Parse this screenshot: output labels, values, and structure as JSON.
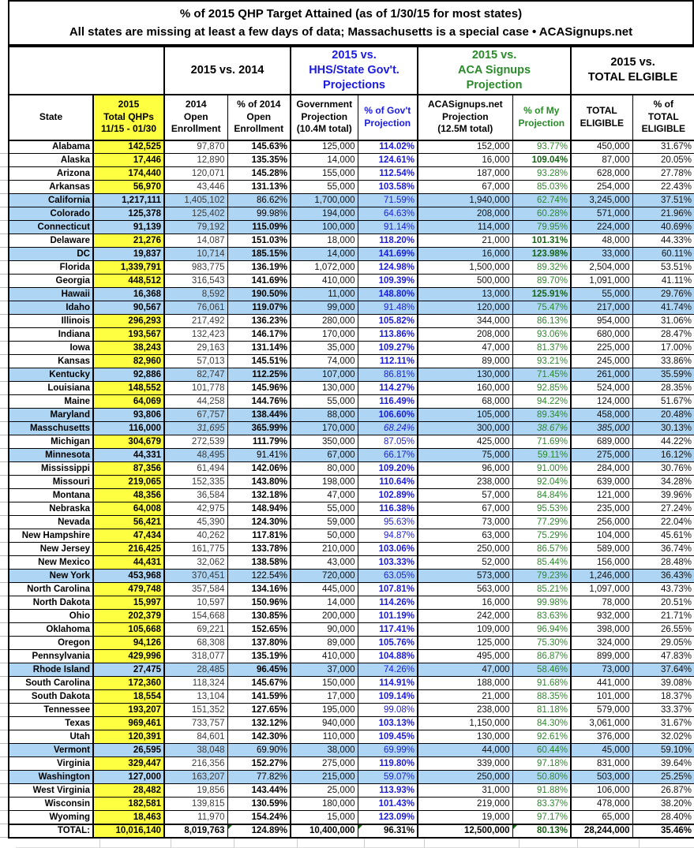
{
  "title": {
    "line1": "% of 2015 QHP Target Attained (as of 1/30/15 for most states)",
    "line2": "All states are missing at least a few days of data; Massachusetts is a special case • ACASignups.net"
  },
  "colors": {
    "highlight_yellow": "#ffff42",
    "row_blue": "#aed5f4",
    "gov_blue": "#1a1ae0",
    "signups_green": "#2a8a2a",
    "signups_green_bold": "#156615"
  },
  "header": {
    "groups": [
      {
        "label": ""
      },
      {
        "label": "2015 vs. 2014"
      },
      {
        "label": "2015 vs.\nHHS/State Gov't.\nProjections"
      },
      {
        "label": "2015 vs.\nACA Signups\nProjection"
      },
      {
        "label": "2015 vs.\nTOTAL ELGIBLE"
      }
    ],
    "columns": [
      {
        "label": "State"
      },
      {
        "label": "2015\nTotal QHPs\n11/15 - 01/30"
      },
      {
        "label": "2014\nOpen\nEnrollment"
      },
      {
        "label": "% of 2014\nOpen\nEnrollment"
      },
      {
        "label": "Government\nProjection\n(10.4M total)"
      },
      {
        "label": "% of Gov't\nProjection"
      },
      {
        "label": "ACASignups.net\nProjection\n(12.5M total)"
      },
      {
        "label": "% of My\nProjection"
      },
      {
        "label": "TOTAL\nELIGIBLE"
      },
      {
        "label": "% of\nTOTAL\nELIGIBLE"
      }
    ]
  },
  "table": {
    "rows": [
      {
        "state": "Alabama",
        "shaded": false,
        "qhp": "142,525",
        "e2014": "97,870",
        "pct2014": "145.63%",
        "gov": "125,000",
        "pctgov": "114.02%",
        "aca": "152,000",
        "pctmy": "93.77%",
        "elig": "450,000",
        "pctelig": "31.67%"
      },
      {
        "state": "Alaska",
        "shaded": false,
        "qhp": "17,446",
        "e2014": "12,890",
        "pct2014": "135.35%",
        "gov": "14,000",
        "pctgov": "124.61%",
        "aca": "16,000",
        "pctmy": "109.04%",
        "elig": "87,000",
        "pctelig": "20.05%"
      },
      {
        "state": "Arizona",
        "shaded": false,
        "qhp": "174,440",
        "e2014": "120,071",
        "pct2014": "145.28%",
        "gov": "155,000",
        "pctgov": "112.54%",
        "aca": "187,000",
        "pctmy": "93.28%",
        "elig": "628,000",
        "pctelig": "27.78%"
      },
      {
        "state": "Arkansas",
        "shaded": false,
        "qhp": "56,970",
        "e2014": "43,446",
        "pct2014": "131.13%",
        "gov": "55,000",
        "pctgov": "103.58%",
        "aca": "67,000",
        "pctmy": "85.03%",
        "elig": "254,000",
        "pctelig": "22.43%"
      },
      {
        "state": "California",
        "shaded": true,
        "qhp": "1,217,111",
        "e2014": "1,405,102",
        "pct2014": "86.62%",
        "gov": "1,700,000",
        "pctgov": "71.59%",
        "aca": "1,940,000",
        "pctmy": "62.74%",
        "elig": "3,245,000",
        "pctelig": "37.51%"
      },
      {
        "state": "Colorado",
        "shaded": true,
        "qhp": "125,378",
        "e2014": "125,402",
        "pct2014": "99.98%",
        "gov": "194,000",
        "pctgov": "64.63%",
        "aca": "208,000",
        "pctmy": "60.28%",
        "elig": "571,000",
        "pctelig": "21.96%"
      },
      {
        "state": "Connecticut",
        "shaded": true,
        "qhp": "91,139",
        "e2014": "79,192",
        "pct2014": "115.09%",
        "gov": "100,000",
        "pctgov": "91.14%",
        "aca": "114,000",
        "pctmy": "79.95%",
        "elig": "224,000",
        "pctelig": "40.69%"
      },
      {
        "state": "Delaware",
        "shaded": false,
        "qhp": "21,276",
        "e2014": "14,087",
        "pct2014": "151.03%",
        "gov": "18,000",
        "pctgov": "118.20%",
        "aca": "21,000",
        "pctmy": "101.31%",
        "elig": "48,000",
        "pctelig": "44.33%"
      },
      {
        "state": "DC",
        "shaded": true,
        "qhp": "19,837",
        "e2014": "10,714",
        "pct2014": "185.15%",
        "gov": "14,000",
        "pctgov": "141.69%",
        "aca": "16,000",
        "pctmy": "123.98%",
        "elig": "33,000",
        "pctelig": "60.11%"
      },
      {
        "state": "Florida",
        "shaded": false,
        "qhp": "1,339,791",
        "e2014": "983,775",
        "pct2014": "136.19%",
        "gov": "1,072,000",
        "pctgov": "124.98%",
        "aca": "1,500,000",
        "pctmy": "89.32%",
        "elig": "2,504,000",
        "pctelig": "53.51%"
      },
      {
        "state": "Georgia",
        "shaded": false,
        "qhp": "448,512",
        "e2014": "316,543",
        "pct2014": "141.69%",
        "gov": "410,000",
        "pctgov": "109.39%",
        "aca": "500,000",
        "pctmy": "89.70%",
        "elig": "1,091,000",
        "pctelig": "41.11%"
      },
      {
        "state": "Hawaii",
        "shaded": true,
        "qhp": "16,368",
        "e2014": "8,592",
        "pct2014": "190.50%",
        "gov": "11,000",
        "pctgov": "148.80%",
        "aca": "13,000",
        "pctmy": "125.91%",
        "elig": "55,000",
        "pctelig": "29.76%"
      },
      {
        "state": "Idaho",
        "shaded": true,
        "qhp": "90,567",
        "e2014": "76,061",
        "pct2014": "119.07%",
        "gov": "99,000",
        "pctgov": "91.48%",
        "aca": "120,000",
        "pctmy": "75.47%",
        "elig": "217,000",
        "pctelig": "41.74%"
      },
      {
        "state": "Illinois",
        "shaded": false,
        "qhp": "296,293",
        "e2014": "217,492",
        "pct2014": "136.23%",
        "gov": "280,000",
        "pctgov": "105.82%",
        "aca": "344,000",
        "pctmy": "86.13%",
        "elig": "954,000",
        "pctelig": "31.06%"
      },
      {
        "state": "Indiana",
        "shaded": false,
        "qhp": "193,567",
        "e2014": "132,423",
        "pct2014": "146.17%",
        "gov": "170,000",
        "pctgov": "113.86%",
        "aca": "208,000",
        "pctmy": "93.06%",
        "elig": "680,000",
        "pctelig": "28.47%"
      },
      {
        "state": "Iowa",
        "shaded": false,
        "qhp": "38,243",
        "e2014": "29,163",
        "pct2014": "131.14%",
        "gov": "35,000",
        "pctgov": "109.27%",
        "aca": "47,000",
        "pctmy": "81.37%",
        "elig": "225,000",
        "pctelig": "17.00%"
      },
      {
        "state": "Kansas",
        "shaded": false,
        "qhp": "82,960",
        "e2014": "57,013",
        "pct2014": "145.51%",
        "gov": "74,000",
        "pctgov": "112.11%",
        "aca": "89,000",
        "pctmy": "93.21%",
        "elig": "245,000",
        "pctelig": "33.86%"
      },
      {
        "state": "Kentucky",
        "shaded": true,
        "qhp": "92,886",
        "e2014": "82,747",
        "pct2014": "112.25%",
        "gov": "107,000",
        "pctgov": "86.81%",
        "aca": "130,000",
        "pctmy": "71.45%",
        "elig": "261,000",
        "pctelig": "35.59%"
      },
      {
        "state": "Louisiana",
        "shaded": false,
        "qhp": "148,552",
        "e2014": "101,778",
        "pct2014": "145.96%",
        "gov": "130,000",
        "pctgov": "114.27%",
        "aca": "160,000",
        "pctmy": "92.85%",
        "elig": "524,000",
        "pctelig": "28.35%"
      },
      {
        "state": "Maine",
        "shaded": false,
        "qhp": "64,069",
        "e2014": "44,258",
        "pct2014": "144.76%",
        "gov": "55,000",
        "pctgov": "116.49%",
        "aca": "68,000",
        "pctmy": "94.22%",
        "elig": "124,000",
        "pctelig": "51.67%"
      },
      {
        "state": "Maryland",
        "shaded": true,
        "qhp": "93,806",
        "e2014": "67,757",
        "pct2014": "138.44%",
        "gov": "88,000",
        "pctgov": "106.60%",
        "aca": "105,000",
        "pctmy": "89.34%",
        "elig": "458,000",
        "pctelig": "20.48%"
      },
      {
        "state": "Masschusetts",
        "shaded": true,
        "qhp": "116,000",
        "e2014": "31,695",
        "pct2014": "365.99%",
        "gov": "170,000",
        "pctgov": "68.24%",
        "aca": "300,000",
        "pctmy": "38.67%",
        "elig": "385,000",
        "pctelig": "30.13%",
        "italics": [
          "e2014",
          "pctgov",
          "pctmy",
          "elig"
        ]
      },
      {
        "state": "Michigan",
        "shaded": false,
        "qhp": "304,679",
        "e2014": "272,539",
        "pct2014": "111.79%",
        "gov": "350,000",
        "pctgov": "87.05%",
        "aca": "425,000",
        "pctmy": "71.69%",
        "elig": "689,000",
        "pctelig": "44.22%"
      },
      {
        "state": "Minnesota",
        "shaded": true,
        "qhp": "44,331",
        "e2014": "48,495",
        "pct2014": "91.41%",
        "gov": "67,000",
        "pctgov": "66.17%",
        "aca": "75,000",
        "pctmy": "59.11%",
        "elig": "275,000",
        "pctelig": "16.12%"
      },
      {
        "state": "Mississippi",
        "shaded": false,
        "qhp": "87,356",
        "e2014": "61,494",
        "pct2014": "142.06%",
        "gov": "80,000",
        "pctgov": "109.20%",
        "aca": "96,000",
        "pctmy": "91.00%",
        "elig": "284,000",
        "pctelig": "30.76%"
      },
      {
        "state": "Missouri",
        "shaded": false,
        "qhp": "219,065",
        "e2014": "152,335",
        "pct2014": "143.80%",
        "gov": "198,000",
        "pctgov": "110.64%",
        "aca": "238,000",
        "pctmy": "92.04%",
        "elig": "639,000",
        "pctelig": "34.28%"
      },
      {
        "state": "Montana",
        "shaded": false,
        "qhp": "48,356",
        "e2014": "36,584",
        "pct2014": "132.18%",
        "gov": "47,000",
        "pctgov": "102.89%",
        "aca": "57,000",
        "pctmy": "84.84%",
        "elig": "121,000",
        "pctelig": "39.96%"
      },
      {
        "state": "Nebraska",
        "shaded": false,
        "qhp": "64,008",
        "e2014": "42,975",
        "pct2014": "148.94%",
        "gov": "55,000",
        "pctgov": "116.38%",
        "aca": "67,000",
        "pctmy": "95.53%",
        "elig": "235,000",
        "pctelig": "27.24%"
      },
      {
        "state": "Nevada",
        "shaded": false,
        "qhp": "56,421",
        "e2014": "45,390",
        "pct2014": "124.30%",
        "gov": "59,000",
        "pctgov": "95.63%",
        "aca": "73,000",
        "pctmy": "77.29%",
        "elig": "256,000",
        "pctelig": "22.04%"
      },
      {
        "state": "New Hampshire",
        "shaded": false,
        "qhp": "47,434",
        "e2014": "40,262",
        "pct2014": "117.81%",
        "gov": "50,000",
        "pctgov": "94.87%",
        "aca": "63,000",
        "pctmy": "75.29%",
        "elig": "104,000",
        "pctelig": "45.61%"
      },
      {
        "state": "New Jersey",
        "shaded": false,
        "qhp": "216,425",
        "e2014": "161,775",
        "pct2014": "133.78%",
        "gov": "210,000",
        "pctgov": "103.06%",
        "aca": "250,000",
        "pctmy": "86.57%",
        "elig": "589,000",
        "pctelig": "36.74%"
      },
      {
        "state": "New Mexico",
        "shaded": false,
        "qhp": "44,431",
        "e2014": "32,062",
        "pct2014": "138.58%",
        "gov": "43,000",
        "pctgov": "103.33%",
        "aca": "52,000",
        "pctmy": "85.44%",
        "elig": "156,000",
        "pctelig": "28.48%"
      },
      {
        "state": "New York",
        "shaded": true,
        "qhp": "453,968",
        "e2014": "370,451",
        "pct2014": "122.54%",
        "gov": "720,000",
        "pctgov": "63.05%",
        "aca": "573,000",
        "pctmy": "79.23%",
        "elig": "1,246,000",
        "pctelig": "36.43%",
        "bold_overrides": {
          "pct2014": false
        }
      },
      {
        "state": "North Carolina",
        "shaded": false,
        "qhp": "479,748",
        "e2014": "357,584",
        "pct2014": "134.16%",
        "gov": "445,000",
        "pctgov": "107.81%",
        "aca": "563,000",
        "pctmy": "85.21%",
        "elig": "1,097,000",
        "pctelig": "43.73%"
      },
      {
        "state": "North Dakota",
        "shaded": false,
        "qhp": "15,997",
        "e2014": "10,597",
        "pct2014": "150.96%",
        "gov": "14,000",
        "pctgov": "114.26%",
        "aca": "16,000",
        "pctmy": "99.98%",
        "elig": "78,000",
        "pctelig": "20.51%"
      },
      {
        "state": "Ohio",
        "shaded": false,
        "qhp": "202,379",
        "e2014": "154,668",
        "pct2014": "130.85%",
        "gov": "200,000",
        "pctgov": "101.19%",
        "aca": "242,000",
        "pctmy": "83.63%",
        "elig": "932,000",
        "pctelig": "21.71%"
      },
      {
        "state": "Oklahoma",
        "shaded": false,
        "qhp": "105,668",
        "e2014": "69,221",
        "pct2014": "152.65%",
        "gov": "90,000",
        "pctgov": "117.41%",
        "aca": "109,000",
        "pctmy": "96.94%",
        "elig": "398,000",
        "pctelig": "26.55%"
      },
      {
        "state": "Oregon",
        "shaded": false,
        "qhp": "94,126",
        "e2014": "68,308",
        "pct2014": "137.80%",
        "gov": "89,000",
        "pctgov": "105.76%",
        "aca": "125,000",
        "pctmy": "75.30%",
        "elig": "324,000",
        "pctelig": "29.05%"
      },
      {
        "state": "Pennsylvania",
        "shaded": false,
        "qhp": "429,996",
        "e2014": "318,077",
        "pct2014": "135.19%",
        "gov": "410,000",
        "pctgov": "104.88%",
        "aca": "495,000",
        "pctmy": "86.87%",
        "elig": "899,000",
        "pctelig": "47.83%"
      },
      {
        "state": "Rhode Island",
        "shaded": true,
        "qhp": "27,475",
        "e2014": "28,485",
        "pct2014": "96.45%",
        "gov": "37,000",
        "pctgov": "74.26%",
        "aca": "47,000",
        "pctmy": "58.46%",
        "elig": "73,000",
        "pctelig": "37.64%",
        "bold_overrides": {
          "pct2014": true
        }
      },
      {
        "state": "South Carolina",
        "shaded": false,
        "qhp": "172,360",
        "e2014": "118,324",
        "pct2014": "145.67%",
        "gov": "150,000",
        "pctgov": "114.91%",
        "aca": "188,000",
        "pctmy": "91.68%",
        "elig": "441,000",
        "pctelig": "39.08%"
      },
      {
        "state": "South Dakota",
        "shaded": false,
        "qhp": "18,554",
        "e2014": "13,104",
        "pct2014": "141.59%",
        "gov": "17,000",
        "pctgov": "109.14%",
        "aca": "21,000",
        "pctmy": "88.35%",
        "elig": "101,000",
        "pctelig": "18.37%"
      },
      {
        "state": "Tennessee",
        "shaded": false,
        "qhp": "193,207",
        "e2014": "151,352",
        "pct2014": "127.65%",
        "gov": "195,000",
        "pctgov": "99.08%",
        "aca": "238,000",
        "pctmy": "81.18%",
        "elig": "579,000",
        "pctelig": "33.37%"
      },
      {
        "state": "Texas",
        "shaded": false,
        "qhp": "969,461",
        "e2014": "733,757",
        "pct2014": "132.12%",
        "gov": "940,000",
        "pctgov": "103.13%",
        "aca": "1,150,000",
        "pctmy": "84.30%",
        "elig": "3,061,000",
        "pctelig": "31.67%"
      },
      {
        "state": "Utah",
        "shaded": false,
        "qhp": "120,391",
        "e2014": "84,601",
        "pct2014": "142.30%",
        "gov": "110,000",
        "pctgov": "109.45%",
        "aca": "130,000",
        "pctmy": "92.61%",
        "elig": "376,000",
        "pctelig": "32.02%"
      },
      {
        "state": "Vermont",
        "shaded": true,
        "qhp": "26,595",
        "e2014": "38,048",
        "pct2014": "69.90%",
        "gov": "38,000",
        "pctgov": "69.99%",
        "aca": "44,000",
        "pctmy": "60.44%",
        "elig": "45,000",
        "pctelig": "59.10%"
      },
      {
        "state": "Virginia",
        "shaded": false,
        "qhp": "329,447",
        "e2014": "216,356",
        "pct2014": "152.27%",
        "gov": "275,000",
        "pctgov": "119.80%",
        "aca": "339,000",
        "pctmy": "97.18%",
        "elig": "831,000",
        "pctelig": "39.64%"
      },
      {
        "state": "Washington",
        "shaded": true,
        "qhp": "127,000",
        "e2014": "163,207",
        "pct2014": "77.82%",
        "gov": "215,000",
        "pctgov": "59.07%",
        "aca": "250,000",
        "pctmy": "50.80%",
        "elig": "503,000",
        "pctelig": "25.25%"
      },
      {
        "state": "West Virginia",
        "shaded": false,
        "qhp": "28,482",
        "e2014": "19,856",
        "pct2014": "143.44%",
        "gov": "25,000",
        "pctgov": "113.93%",
        "aca": "31,000",
        "pctmy": "91.88%",
        "elig": "106,000",
        "pctelig": "26.87%"
      },
      {
        "state": "Wisconsin",
        "shaded": false,
        "qhp": "182,581",
        "e2014": "139,815",
        "pct2014": "130.59%",
        "gov": "180,000",
        "pctgov": "101.43%",
        "aca": "219,000",
        "pctmy": "83.37%",
        "elig": "478,000",
        "pctelig": "38.20%"
      },
      {
        "state": "Wyoming",
        "shaded": false,
        "qhp": "18,463",
        "e2014": "11,970",
        "pct2014": "154.24%",
        "gov": "15,000",
        "pctgov": "123.09%",
        "aca": "19,000",
        "pctmy": "97.17%",
        "elig": "65,000",
        "pctelig": "28.40%"
      }
    ],
    "total": {
      "state": "TOTAL:",
      "qhp": "10,016,140",
      "e2014": "8,019,763",
      "pct2014": "124.89%",
      "gov": "10,400,000",
      "pctgov": "96.31%",
      "aca": "12,500,000",
      "pctmy": "80.13%",
      "elig": "28,244,000",
      "pctelig": "35.46%",
      "note_cells": [
        "pct2014",
        "pctgov",
        "pctmy"
      ]
    }
  }
}
